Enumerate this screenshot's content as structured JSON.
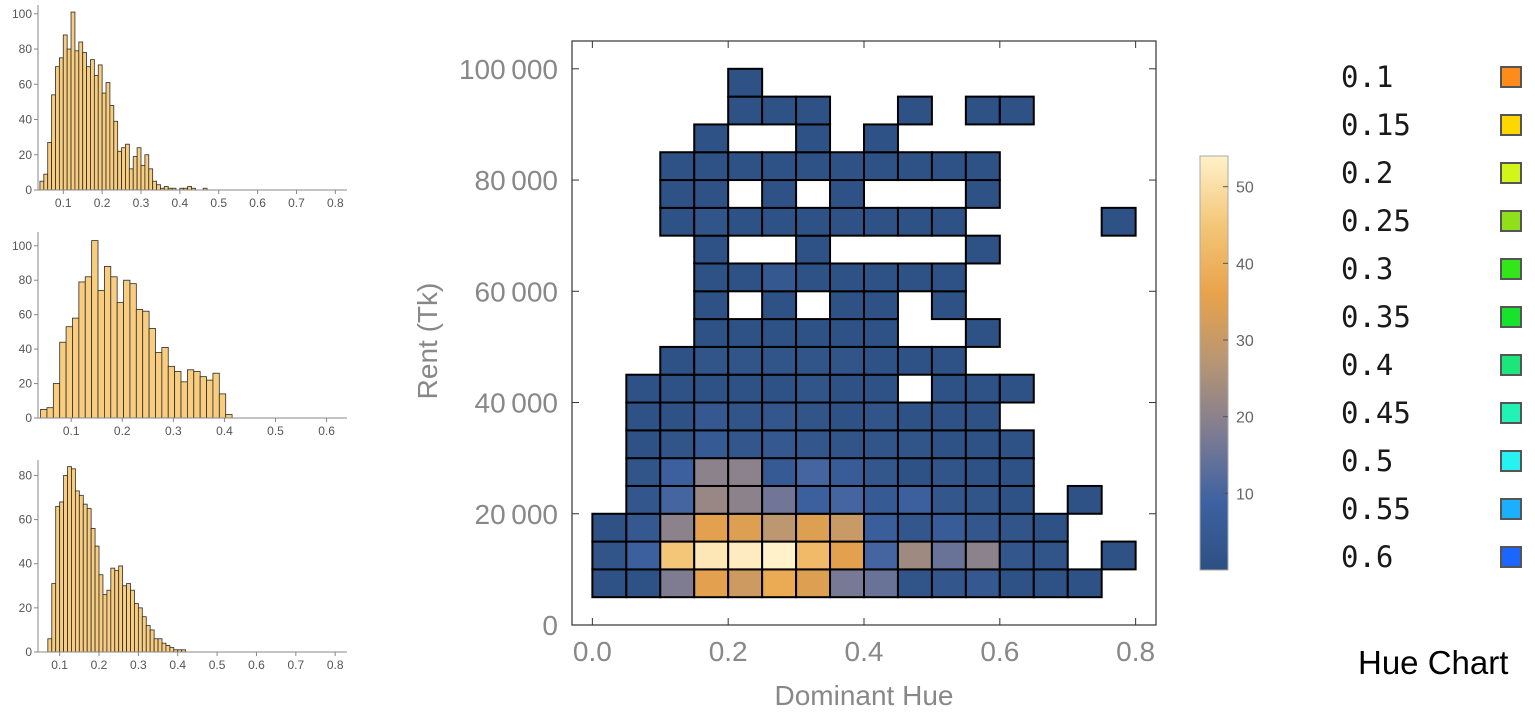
{
  "histograms": [
    {
      "type": "bar",
      "bin_start": 0.04,
      "bin_width": 0.01,
      "counts": [
        5,
        9,
        27,
        54,
        70,
        75,
        88,
        80,
        101,
        79,
        84,
        78,
        70,
        74,
        65,
        71,
        55,
        61,
        48,
        39,
        22,
        24,
        26,
        12,
        19,
        24,
        14,
        20,
        12,
        5,
        3,
        1,
        2,
        1,
        1,
        0,
        1,
        1,
        2,
        1,
        0,
        0,
        1,
        0,
        0,
        0,
        0,
        0,
        0,
        0
      ],
      "counts_note": "",
      "ylim": [
        0,
        105
      ],
      "xlim": [
        0.035,
        0.83
      ],
      "xticks": [
        "0.1",
        "0.2",
        "0.3",
        "0.4",
        "0.5",
        "0.6",
        "0.7",
        "0.8"
      ],
      "xtick_values": [
        0.1,
        0.2,
        0.3,
        0.4,
        0.5,
        0.6,
        0.7,
        0.8
      ],
      "yticks": [
        "0",
        "20",
        "40",
        "60",
        "80",
        "100"
      ],
      "ytick_values": [
        0,
        20,
        40,
        60,
        80,
        100
      ],
      "fill_color": "#f9cd7f",
      "edge_color": "#2b2b2b"
    },
    {
      "type": "bar",
      "bin_start": 0.04,
      "bin_width": 0.0125,
      "counts": [
        5,
        6,
        20,
        44,
        53,
        58,
        79,
        82,
        103,
        74,
        88,
        82,
        67,
        80,
        78,
        63,
        62,
        52,
        38,
        41,
        30,
        27,
        21,
        28,
        27,
        24,
        22,
        26,
        14,
        2
      ],
      "counts_note": "",
      "ylim": [
        0,
        108
      ],
      "xlim": [
        0.035,
        0.64
      ],
      "xticks": [
        "0.1",
        "0.2",
        "0.3",
        "0.4",
        "0.5",
        "0.6"
      ],
      "xtick_values": [
        0.1,
        0.2,
        0.3,
        0.4,
        0.5,
        0.6
      ],
      "yticks": [
        "0",
        "20",
        "40",
        "60",
        "80",
        "100"
      ],
      "ytick_values": [
        0,
        20,
        40,
        60,
        80,
        100
      ],
      "fill_color": "#f9cd7f",
      "edge_color": "#2b2b2b"
    },
    {
      "type": "bar",
      "bin_start": 0.07,
      "bin_width": 0.01,
      "counts": [
        6,
        31,
        66,
        68,
        80,
        84,
        83,
        73,
        71,
        67,
        65,
        56,
        48,
        35,
        26,
        28,
        38,
        37,
        39,
        30,
        31,
        28,
        22,
        20,
        16,
        12,
        10,
        6,
        6,
        4,
        3,
        2,
        1,
        1,
        1,
        0,
        0,
        0,
        0,
        0,
        0
      ],
      "ylim": [
        0,
        87
      ],
      "xlim": [
        0.045,
        0.83
      ],
      "xticks": [
        "0.1",
        "0.2",
        "0.3",
        "0.4",
        "0.5",
        "0.6",
        "0.7",
        "0.8"
      ],
      "xtick_values": [
        0.1,
        0.2,
        0.3,
        0.4,
        0.5,
        0.6,
        0.7,
        0.8
      ],
      "yticks": [
        "0",
        "20",
        "40",
        "60",
        "80"
      ],
      "ytick_values": [
        0,
        20,
        40,
        60,
        80
      ],
      "fill_color": "#f9cd7f",
      "edge_color": "#2b2b2b"
    }
  ],
  "chart_data": {
    "type": "heatmap",
    "xlabel": "Dominant Hue",
    "ylabel": "Rent (Tk)",
    "xlim": [
      -0.03,
      0.83
    ],
    "ylim": [
      0,
      105000
    ],
    "xticks": [
      "0.0",
      "0.2",
      "0.4",
      "0.6",
      "0.8"
    ],
    "xtick_values": [
      0.0,
      0.2,
      0.4,
      0.6,
      0.8
    ],
    "yticks": [
      "0",
      "20 000",
      "40 000",
      "60 000",
      "80 000",
      "100 000"
    ],
    "ytick_values": [
      0,
      20000,
      40000,
      60000,
      80000,
      100000
    ],
    "bin_width_x": 0.05,
    "bin_height_y": 5000,
    "x_start": 0.0,
    "y_start": 5000,
    "counts_rows_bottom_to_top": [
      [
        1,
        1,
        18,
        35,
        31,
        38,
        34,
        17,
        15,
        2,
        3,
        4,
        1,
        1,
        1,
        0
      ],
      [
        2,
        8,
        45,
        52,
        53,
        54,
        42,
        35,
        10,
        23,
        15,
        20,
        3,
        2,
        0,
        1
      ],
      [
        1,
        4,
        20,
        35,
        34,
        28,
        34,
        30,
        7,
        3,
        6,
        3,
        2,
        1,
        0,
        0
      ],
      [
        0,
        3,
        10,
        22,
        20,
        16,
        8,
        10,
        5,
        8,
        3,
        2,
        1,
        0,
        1,
        0
      ],
      [
        0,
        2,
        8,
        20,
        20,
        5,
        10,
        6,
        3,
        1,
        2,
        1,
        1,
        0,
        0,
        0
      ],
      [
        0,
        1,
        2,
        5,
        3,
        4,
        3,
        2,
        2,
        2,
        1,
        1,
        1,
        0,
        0,
        0
      ],
      [
        0,
        1,
        1,
        4,
        2,
        3,
        2,
        1,
        2,
        1,
        1,
        1,
        0,
        0,
        0,
        0
      ],
      [
        0,
        1,
        1,
        1,
        1,
        1,
        2,
        1,
        1,
        0,
        1,
        1,
        1,
        0,
        0,
        0
      ],
      [
        0,
        0,
        1,
        2,
        2,
        2,
        2,
        2,
        1,
        1,
        1,
        0,
        0,
        0,
        0,
        0
      ],
      [
        0,
        0,
        0,
        1,
        1,
        1,
        1,
        1,
        1,
        0,
        0,
        1,
        0,
        0,
        0,
        0
      ],
      [
        0,
        0,
        0,
        1,
        0,
        1,
        0,
        1,
        1,
        0,
        1,
        0,
        0,
        0,
        0,
        0
      ],
      [
        0,
        0,
        0,
        1,
        1,
        4,
        1,
        1,
        1,
        1,
        1,
        0,
        0,
        0,
        0,
        0
      ],
      [
        0,
        0,
        0,
        1,
        0,
        0,
        1,
        0,
        0,
        0,
        0,
        1,
        0,
        0,
        0,
        0
      ],
      [
        0,
        0,
        1,
        2,
        1,
        1,
        1,
        1,
        1,
        1,
        1,
        0,
        0,
        0,
        0,
        1
      ],
      [
        0,
        0,
        1,
        1,
        0,
        1,
        0,
        1,
        0,
        0,
        0,
        1,
        0,
        0,
        0,
        0
      ],
      [
        0,
        0,
        1,
        1,
        1,
        1,
        1,
        1,
        1,
        1,
        1,
        1,
        0,
        0,
        0,
        0
      ],
      [
        0,
        0,
        0,
        1,
        0,
        0,
        1,
        0,
        1,
        0,
        0,
        0,
        0,
        0,
        0,
        0
      ],
      [
        0,
        0,
        0,
        0,
        1,
        1,
        1,
        0,
        0,
        1,
        0,
        1,
        1,
        0,
        0,
        0
      ],
      [
        0,
        0,
        0,
        0,
        1,
        0,
        0,
        0,
        0,
        0,
        0,
        0,
        0,
        0,
        0,
        0
      ]
    ],
    "colorbar": {
      "min": 0,
      "max": 54,
      "ticks": [
        "10",
        "20",
        "30",
        "40",
        "50"
      ],
      "tick_values": [
        10,
        20,
        30,
        40,
        50
      ],
      "stops": [
        "#2d5082",
        "#3e62a2",
        "#7f7c92",
        "#b79574",
        "#e8a34a",
        "#f4c678",
        "#fff1c9"
      ]
    },
    "cell_edge_color": "#000000"
  },
  "hue_legend": {
    "title": "Hue Chart",
    "entries": [
      {
        "label": "0.1",
        "color": "#ff8c1a"
      },
      {
        "label": "0.15",
        "color": "#ffd700"
      },
      {
        "label": "0.2",
        "color": "#d2f51a"
      },
      {
        "label": "0.25",
        "color": "#8fe01a"
      },
      {
        "label": "0.3",
        "color": "#33e619"
      },
      {
        "label": "0.35",
        "color": "#17e32c"
      },
      {
        "label": "0.4",
        "color": "#1ce57a"
      },
      {
        "label": "0.45",
        "color": "#22f2b4"
      },
      {
        "label": "0.5",
        "color": "#26f2f2"
      },
      {
        "label": "0.55",
        "color": "#1ab0ff"
      },
      {
        "label": "0.6",
        "color": "#1a66ff"
      }
    ]
  }
}
